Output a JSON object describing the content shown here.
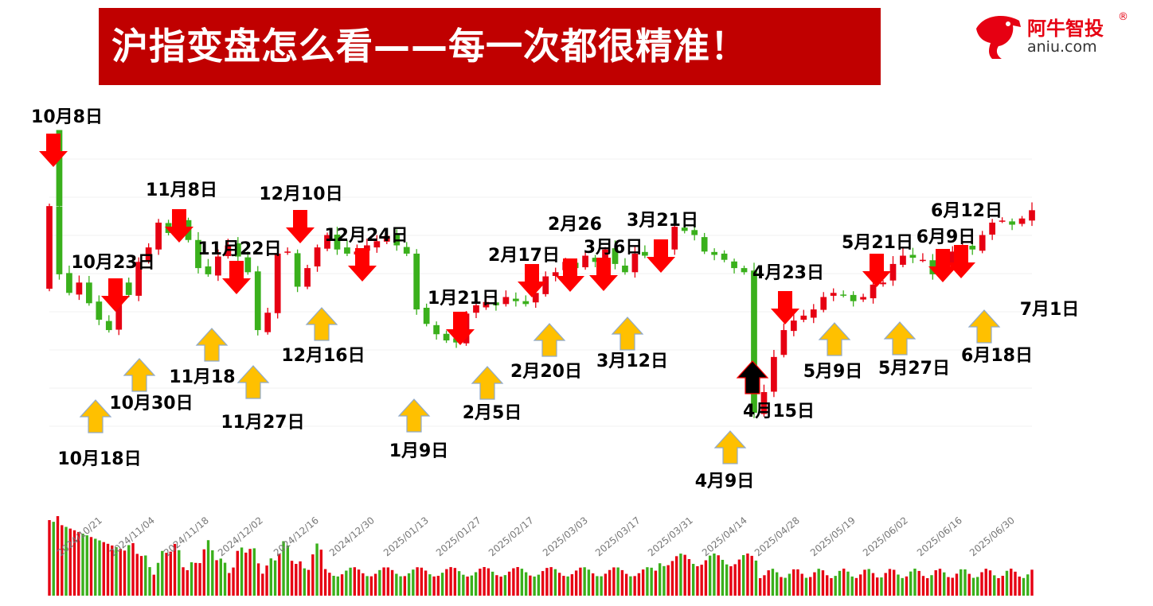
{
  "title": "沪指变盘怎么看——每一次都很精准！",
  "logo": {
    "name": "阿牛智投",
    "reg": "®",
    "url": "aniu.com"
  },
  "colors": {
    "up": "#e60012",
    "down": "#3ab01c",
    "title_bg": "#c00000",
    "top_arrow": "#ff0000",
    "bottom_arrow": "#ffc000",
    "special_arrow": "#000000"
  },
  "chart_data": [
    {
      "type": "candlestick",
      "title": "",
      "x_axis_labels": [
        "2024/10/21",
        "2024/11/04",
        "2024/11/18",
        "2024/12/02",
        "2024/12/16",
        "2024/12/30",
        "2025/01/13",
        "2025/01/27",
        "2025/02/17",
        "2025/03/03",
        "2025/03/17",
        "2025/03/31",
        "2025/04/14",
        "2025/04/28",
        "2025/05/19",
        "2025/06/02",
        "2025/06/16",
        "2025/06/30"
      ],
      "close_values_approx": [
        3490,
        3325,
        3280,
        3305,
        3255,
        3215,
        3190,
        3300,
        3275,
        3355,
        3390,
        3450,
        3425,
        3460,
        3408,
        3340,
        3325,
        3368,
        3395,
        3368,
        3330,
        3190,
        3232,
        3375,
        3380,
        3295,
        3340,
        3390,
        3420,
        3385,
        3375,
        3380,
        3395,
        3405,
        3418,
        3395,
        3375,
        3240,
        3205,
        3180,
        3165,
        3160,
        3230,
        3250,
        3258,
        3250,
        3270,
        3260,
        3253,
        3280,
        3320,
        3330,
        3355,
        3340,
        3370,
        3355,
        3385,
        3350,
        3330,
        3375,
        3370,
        3360,
        3380,
        3440,
        3430,
        3420,
        3380,
        3372,
        3360,
        3340,
        3330,
        2990,
        3040,
        3125,
        3190,
        3213,
        3225,
        3240,
        3270,
        3280,
        3275,
        3260,
        3270,
        3300,
        3305,
        3350,
        3370,
        3365,
        3360,
        3325,
        3350,
        3380,
        3390,
        3385,
        3420,
        3450,
        3455,
        3445,
        3460,
        3480
      ],
      "marks": {
        "top_red_arrows": [
          "10月8日",
          "10月23日",
          "11月8日",
          "11月22日",
          "12月10日",
          "12月24日",
          "1月21日",
          "2月17日",
          "2月26",
          "3月6日",
          "3月21日",
          "4月23日",
          "5月21日",
          "6月9日",
          "6月12日"
        ],
        "bottom_yellow_arrows": [
          "10月18日",
          "10月30日",
          "11月18",
          "11月27日",
          "12月16日",
          "1月9日",
          "2月5日",
          "2月20日",
          "3月12日",
          "4月9日",
          "5月9日",
          "5月27日",
          "6月18日"
        ],
        "black_arrow": [
          "4月15日"
        ],
        "unmarked_labels": [
          "7月1日"
        ]
      },
      "volume": "approx_relative"
    }
  ]
}
